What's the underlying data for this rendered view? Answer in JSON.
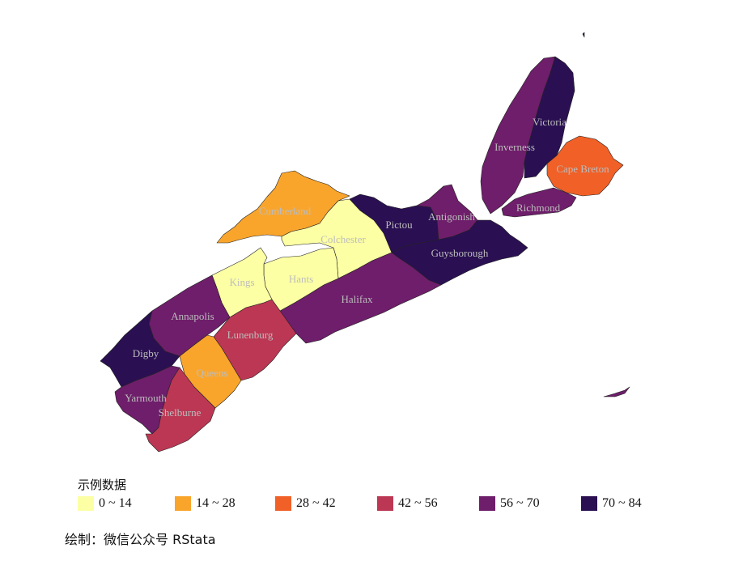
{
  "legend": {
    "title": "示例数据",
    "classes": [
      {
        "label": "0 ~ 14",
        "color": "#FCFFA4"
      },
      {
        "label": "14 ~ 28",
        "color": "#F9A52C"
      },
      {
        "label": "28 ~ 42",
        "color": "#F06027"
      },
      {
        "label": "42 ~ 56",
        "color": "#BC3754"
      },
      {
        "label": "56 ~ 70",
        "color": "#6E1E6A"
      },
      {
        "label": "70 ~ 84",
        "color": "#2A1052"
      }
    ]
  },
  "caption": "绘制：微信公众号 RStata",
  "counties": [
    {
      "name": "Cumberland",
      "class": 1
    },
    {
      "name": "Colchester",
      "class": 0
    },
    {
      "name": "Pictou",
      "class": 5
    },
    {
      "name": "Antigonish",
      "class": 4
    },
    {
      "name": "Guysborough",
      "class": 5
    },
    {
      "name": "Halifax",
      "class": 4
    },
    {
      "name": "Hants",
      "class": 0
    },
    {
      "name": "Kings",
      "class": 0
    },
    {
      "name": "Annapolis",
      "class": 4
    },
    {
      "name": "Lunenburg",
      "class": 3
    },
    {
      "name": "Queens",
      "class": 1
    },
    {
      "name": "Digby",
      "class": 5
    },
    {
      "name": "Yarmouth",
      "class": 4
    },
    {
      "name": "Shelburne",
      "class": 3
    },
    {
      "name": "Inverness",
      "class": 4
    },
    {
      "name": "Victoria",
      "class": 5
    },
    {
      "name": "Cape Breton",
      "class": 2
    },
    {
      "name": "Richmond",
      "class": 4
    }
  ]
}
